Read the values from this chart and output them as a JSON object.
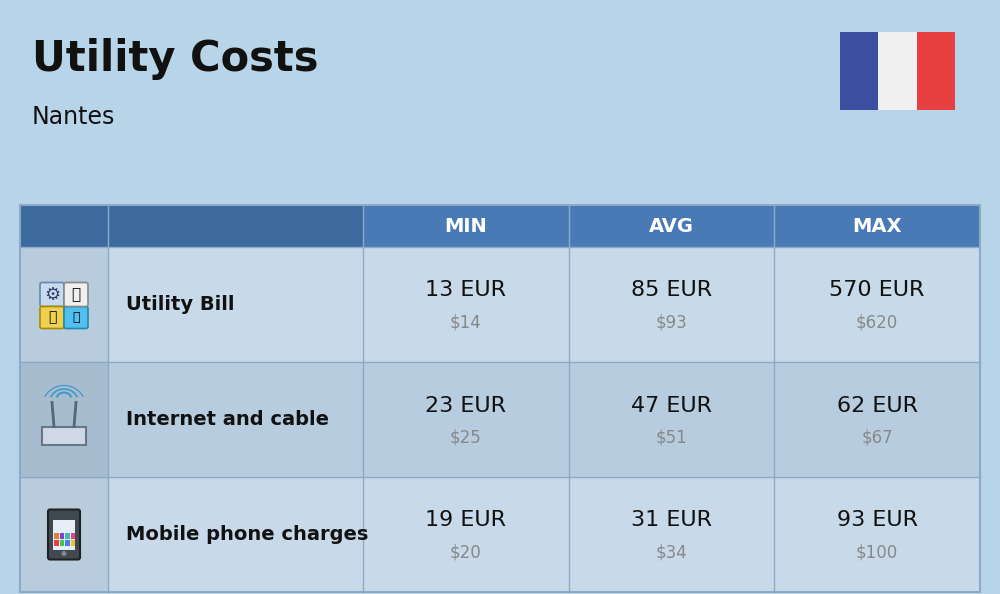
{
  "title": "Utility Costs",
  "subtitle": "Nantes",
  "background_color": "#b8d4e8",
  "header_bg_color": "#4a7ab5",
  "header_text_color": "#ffffff",
  "row_bg_color_odd": "#c8daea",
  "row_bg_color_even": "#b8ccdf",
  "icon_col_bg_odd": "#b8ccde",
  "icon_col_bg_even": "#a8bcd0",
  "col_headers": [
    "MIN",
    "AVG",
    "MAX"
  ],
  "rows": [
    {
      "label": "Utility Bill",
      "min_eur": "13 EUR",
      "min_usd": "$14",
      "avg_eur": "85 EUR",
      "avg_usd": "$93",
      "max_eur": "570 EUR",
      "max_usd": "$620"
    },
    {
      "label": "Internet and cable",
      "min_eur": "23 EUR",
      "min_usd": "$25",
      "avg_eur": "47 EUR",
      "avg_usd": "$51",
      "max_eur": "62 EUR",
      "max_usd": "$67"
    },
    {
      "label": "Mobile phone charges",
      "min_eur": "19 EUR",
      "min_usd": "$20",
      "avg_eur": "31 EUR",
      "avg_usd": "$34",
      "max_eur": "93 EUR",
      "max_usd": "$100"
    }
  ],
  "flag_blue": "#3d4fa0",
  "flag_white": "#f0f0f0",
  "flag_red": "#e84040",
  "title_fontsize": 30,
  "subtitle_fontsize": 17,
  "header_fontsize": 14,
  "label_fontsize": 14,
  "value_fontsize": 16,
  "usd_fontsize": 12,
  "usd_color": "#888888",
  "divider_color": "#8aaac8",
  "text_color": "#111111"
}
